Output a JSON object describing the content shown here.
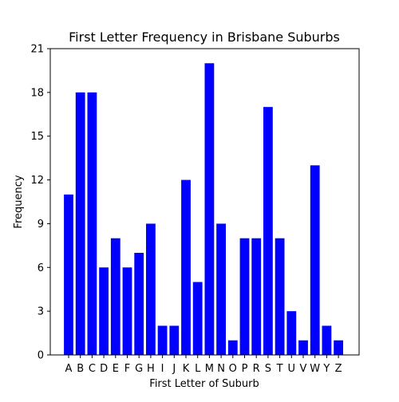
{
  "chart_data": {
    "type": "bar",
    "title": "First Letter Frequency in Brisbane Suburbs",
    "xlabel": "First Letter of Suburb",
    "ylabel": "Frequency",
    "categories": [
      "A",
      "B",
      "C",
      "D",
      "E",
      "F",
      "G",
      "H",
      "I",
      "J",
      "K",
      "L",
      "M",
      "N",
      "O",
      "P",
      "R",
      "S",
      "T",
      "U",
      "V",
      "W",
      "Y",
      "Z"
    ],
    "values": [
      11,
      18,
      18,
      6,
      8,
      6,
      7,
      9,
      2,
      2,
      12,
      5,
      20,
      9,
      1,
      8,
      8,
      17,
      8,
      3,
      1,
      13,
      2,
      1
    ],
    "ylim": [
      0,
      21
    ],
    "yticks": [
      0,
      3,
      6,
      9,
      12,
      15,
      18,
      21
    ],
    "bar_color": "#0000ff",
    "grid": false,
    "legend": "none"
  }
}
